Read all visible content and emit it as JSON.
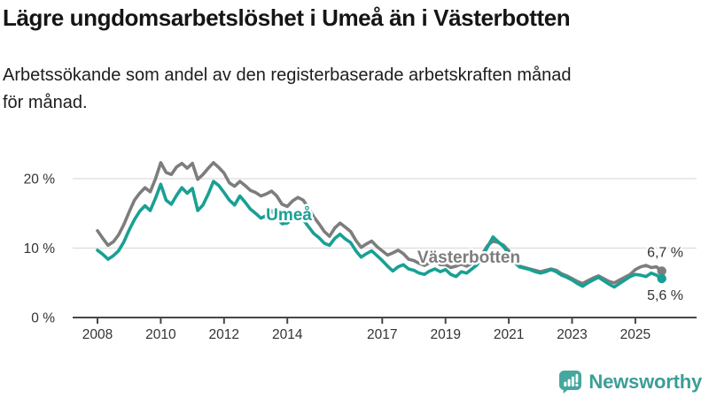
{
  "header": {
    "title": "Lägre ungdomsarbetslöshet i Umeå än i Västerbotten",
    "subtitle_line1": "Arbetssökande som andel av den registerbaserade arbetskraften månad",
    "subtitle_line2": "för månad."
  },
  "chart_data": {
    "type": "line",
    "title": "Lägre ungdomsarbetslöshet i Umeå än i Västerbotten",
    "xlabel": "",
    "ylabel": "Arbetssökande som andel av den registerbaserade arbetskraften",
    "grid": "horizontal",
    "legend_position": "inline-labels",
    "x_start": 2008.0,
    "x_step": 0.1666667,
    "xlim": [
      2007.2,
      2026.3
    ],
    "ylim": [
      0,
      23.5
    ],
    "x_ticks": [
      {
        "value": 2008,
        "label": "2008"
      },
      {
        "value": 2010,
        "label": "2010"
      },
      {
        "value": 2012,
        "label": "2012"
      },
      {
        "value": 2014,
        "label": "2014"
      },
      {
        "value": 2017,
        "label": "2017"
      },
      {
        "value": 2019,
        "label": "2019"
      },
      {
        "value": 2021,
        "label": "2021"
      },
      {
        "value": 2023,
        "label": "2023"
      },
      {
        "value": 2025,
        "label": "2025"
      }
    ],
    "y_ticks": [
      {
        "value": 0,
        "label": "0 %"
      },
      {
        "value": 10,
        "label": "10 %"
      },
      {
        "value": 20,
        "label": "20 %"
      }
    ],
    "colors": {
      "grid": "#dcdcdc",
      "axis": "#474747",
      "tick_label": "#333333"
    },
    "series": [
      {
        "id": "vasterbotten",
        "name": "Västerbotten",
        "color": "#7d7d7d",
        "end_label": "6,7 %",
        "last_value": 6.7,
        "end_label_dy": -16,
        "label_pos": {
          "x": 529,
          "y": 297
        },
        "values": [
          12.5,
          11.4,
          10.4,
          10.9,
          11.9,
          13.4,
          15.2,
          16.9,
          17.9,
          18.7,
          18.1,
          20.0,
          22.3,
          20.9,
          20.6,
          21.7,
          22.2,
          21.5,
          22.2,
          19.9,
          20.6,
          21.5,
          22.3,
          21.6,
          20.8,
          19.4,
          18.9,
          19.6,
          19.0,
          18.3,
          18.0,
          17.5,
          17.8,
          18.2,
          17.5,
          16.3,
          16.0,
          16.8,
          17.3,
          16.9,
          15.8,
          14.5,
          13.5,
          12.4,
          11.7,
          12.9,
          13.6,
          13.0,
          12.4,
          11.1,
          10.1,
          10.6,
          11.0,
          10.2,
          9.6,
          9.0,
          9.3,
          9.7,
          9.2,
          8.4,
          8.2,
          7.8,
          7.5,
          7.9,
          8.1,
          7.6,
          7.6,
          7.2,
          7.4,
          7.7,
          7.4,
          7.8,
          8.2,
          9.2,
          10.4,
          11.0,
          10.8,
          10.4,
          9.6,
          8.4,
          7.4,
          7.2,
          7.0,
          6.8,
          6.6,
          6.8,
          7.0,
          6.8,
          6.3,
          6.0,
          5.6,
          5.2,
          4.9,
          5.3,
          5.7,
          6.0,
          5.6,
          5.2,
          5.0,
          5.4,
          5.8,
          6.2,
          6.9,
          7.3,
          7.5,
          7.2,
          7.3,
          6.7
        ]
      },
      {
        "id": "umea",
        "name": "Umeå",
        "color": "#18a094",
        "end_label": "5,6 %",
        "last_value": 5.6,
        "end_label_dy": 24,
        "label_pos": {
          "x": 326,
          "y": 249
        },
        "values": [
          9.7,
          9.1,
          8.4,
          8.9,
          9.6,
          10.9,
          12.6,
          14.1,
          15.3,
          16.1,
          15.4,
          17.2,
          19.2,
          16.9,
          16.3,
          17.6,
          18.7,
          17.9,
          18.6,
          15.4,
          16.2,
          17.8,
          19.6,
          19.0,
          18.0,
          16.9,
          16.2,
          17.5,
          16.6,
          15.6,
          15.0,
          14.3,
          14.7,
          15.4,
          14.4,
          13.5,
          13.6,
          14.3,
          14.9,
          14.1,
          13.1,
          12.1,
          11.5,
          10.7,
          10.4,
          11.4,
          12.0,
          11.3,
          10.8,
          9.6,
          8.7,
          9.2,
          9.6,
          8.9,
          8.2,
          7.4,
          6.7,
          7.3,
          7.6,
          7.0,
          6.8,
          6.4,
          6.2,
          6.7,
          7.0,
          6.6,
          6.9,
          6.2,
          5.9,
          6.6,
          6.4,
          7.0,
          7.6,
          8.8,
          10.2,
          11.6,
          10.9,
          10.2,
          9.2,
          8.0,
          7.3,
          7.1,
          6.9,
          6.6,
          6.4,
          6.6,
          6.9,
          6.6,
          6.1,
          5.8,
          5.4,
          4.9,
          4.5,
          5.0,
          5.4,
          5.8,
          5.3,
          4.8,
          4.4,
          4.9,
          5.4,
          5.9,
          6.2,
          6.1,
          5.9,
          6.4,
          6.1,
          5.6
        ]
      }
    ]
  },
  "footer": {
    "brand": "Newsworthy",
    "brand_color": "#3b9e97",
    "icon": "newsworthy-bar-chart-speech-bubble"
  }
}
